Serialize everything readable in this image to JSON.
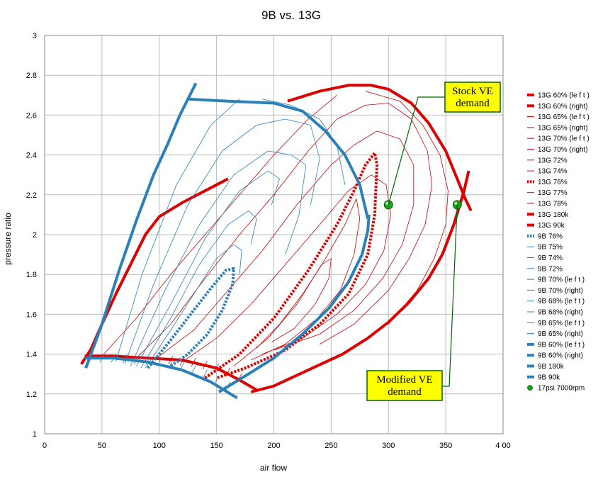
{
  "chart_data": {
    "type": "line",
    "title": "9B vs. 13G",
    "xlabel": "air flow",
    "ylabel": "pressure ratio",
    "xlim": [
      0,
      400
    ],
    "ylim": [
      1,
      3
    ],
    "x_ticks": [
      "0",
      "50",
      "100",
      "150",
      "200",
      "250",
      "300",
      "350",
      "4 00"
    ],
    "y_ticks": [
      "1",
      "1.2",
      "1.4",
      "1.6",
      "1.8",
      "2",
      "2.2",
      "2.4",
      "2.6",
      "2.8",
      "3"
    ],
    "grid": true,
    "legend_position": "right",
    "colors": {
      "red": "#dd0000",
      "blue": "#2a80b9",
      "green": "#1aa01a",
      "callout_fill": "#ffff00",
      "callout_border": "#006600",
      "grid": "#bbbbbb"
    },
    "series": [
      {
        "name": "13G 60% (le f t )",
        "color": "#dd0000",
        "style": "thick",
        "points": [
          [
            32,
            1.35
          ],
          [
            40,
            1.42
          ],
          [
            50,
            1.55
          ],
          [
            62,
            1.7
          ],
          [
            75,
            1.85
          ],
          [
            88,
            2.0
          ],
          [
            100,
            2.09
          ],
          [
            120,
            2.16
          ],
          [
            140,
            2.22
          ],
          [
            160,
            2.28
          ]
        ]
      },
      {
        "name": "13G 60% (right)",
        "color": "#dd0000",
        "style": "thick",
        "points": [
          [
            212,
            2.67
          ],
          [
            240,
            2.72
          ],
          [
            265,
            2.75
          ],
          [
            285,
            2.75
          ],
          [
            300,
            2.73
          ],
          [
            320,
            2.66
          ],
          [
            335,
            2.56
          ],
          [
            350,
            2.42
          ],
          [
            360,
            2.28
          ],
          [
            367,
            2.18
          ],
          [
            372,
            2.12
          ]
        ]
      },
      {
        "name": "13G 65% (le f t )",
        "color": "#cc0000",
        "style": "thin",
        "points": [
          [
            50,
            1.39
          ],
          [
            80,
            1.58
          ],
          [
            110,
            1.8
          ],
          [
            140,
            2.0
          ],
          [
            170,
            2.2
          ],
          [
            200,
            2.4
          ],
          [
            230,
            2.58
          ],
          [
            255,
            2.7
          ]
        ]
      },
      {
        "name": "13G 65% (right)",
        "color": "#cc0000",
        "style": "thin",
        "points": [
          [
            280,
            2.72
          ],
          [
            310,
            2.67
          ],
          [
            330,
            2.55
          ],
          [
            345,
            2.4
          ],
          [
            352,
            2.22
          ],
          [
            350,
            2.05
          ],
          [
            340,
            1.88
          ],
          [
            325,
            1.72
          ],
          [
            300,
            1.55
          ]
        ]
      },
      {
        "name": "13G 70% (le f t )",
        "color": "#cc0000",
        "style": "thin",
        "points": [
          [
            80,
            1.38
          ],
          [
            110,
            1.55
          ],
          [
            140,
            1.78
          ],
          [
            170,
            2.0
          ],
          [
            200,
            2.2
          ],
          [
            230,
            2.42
          ],
          [
            255,
            2.58
          ]
        ]
      },
      {
        "name": "13G 70% (right)",
        "color": "#cc0000",
        "style": "thin",
        "points": [
          [
            255,
            2.58
          ],
          [
            280,
            2.65
          ],
          [
            300,
            2.66
          ],
          [
            320,
            2.58
          ],
          [
            334,
            2.42
          ],
          [
            338,
            2.25
          ],
          [
            332,
            2.05
          ],
          [
            318,
            1.88
          ],
          [
            300,
            1.72
          ],
          [
            270,
            1.55
          ],
          [
            240,
            1.45
          ]
        ]
      },
      {
        "name": "13G 72%",
        "color": "#cc0000",
        "style": "thin",
        "points": [
          [
            100,
            1.39
          ],
          [
            130,
            1.52
          ],
          [
            160,
            1.72
          ],
          [
            190,
            1.92
          ],
          [
            220,
            2.15
          ],
          [
            250,
            2.35
          ],
          [
            270,
            2.45
          ],
          [
            290,
            2.52
          ],
          [
            310,
            2.48
          ],
          [
            322,
            2.35
          ],
          [
            322,
            2.15
          ],
          [
            312,
            1.95
          ],
          [
            295,
            1.78
          ],
          [
            270,
            1.62
          ],
          [
            240,
            1.5
          ],
          [
            200,
            1.42
          ]
        ]
      },
      {
        "name": "13G 74%",
        "color": "#cc0000",
        "style": "thin",
        "points": [
          [
            120,
            1.36
          ],
          [
            150,
            1.48
          ],
          [
            180,
            1.65
          ],
          [
            210,
            1.85
          ],
          [
            240,
            2.05
          ],
          [
            265,
            2.22
          ],
          [
            285,
            2.3
          ],
          [
            298,
            2.25
          ],
          [
            302,
            2.1
          ],
          [
            296,
            1.92
          ],
          [
            280,
            1.75
          ],
          [
            255,
            1.6
          ],
          [
            225,
            1.48
          ],
          [
            190,
            1.4
          ]
        ]
      },
      {
        "name": "13G 76%",
        "color": "#dd0000",
        "style": "dotted",
        "points": [
          [
            140,
            1.28
          ],
          [
            170,
            1.4
          ],
          [
            200,
            1.58
          ],
          [
            230,
            1.82
          ],
          [
            255,
            2.05
          ],
          [
            270,
            2.22
          ],
          [
            280,
            2.35
          ],
          [
            288,
            2.41
          ],
          [
            290,
            2.35
          ],
          [
            288,
            2.1
          ],
          [
            282,
            1.9
          ],
          [
            265,
            1.7
          ],
          [
            240,
            1.55
          ],
          [
            210,
            1.42
          ],
          [
            175,
            1.33
          ],
          [
            150,
            1.28
          ]
        ]
      },
      {
        "name": "13G 77%",
        "color": "#cc0000",
        "style": "thin",
        "points": [
          [
            165,
            1.34
          ],
          [
            195,
            1.48
          ],
          [
            220,
            1.65
          ],
          [
            245,
            1.88
          ],
          [
            262,
            2.05
          ],
          [
            272,
            2.18
          ],
          [
            275,
            2.08
          ],
          [
            270,
            1.9
          ],
          [
            258,
            1.72
          ],
          [
            238,
            1.58
          ],
          [
            210,
            1.45
          ],
          [
            180,
            1.37
          ]
        ]
      },
      {
        "name": "13G 78%",
        "color": "#cc0000",
        "style": "thin",
        "points": [
          [
            185,
            1.43
          ],
          [
            205,
            1.55
          ],
          [
            225,
            1.7
          ],
          [
            242,
            1.85
          ],
          [
            250,
            1.88
          ],
          [
            248,
            1.78
          ],
          [
            236,
            1.65
          ],
          [
            218,
            1.53
          ],
          [
            198,
            1.46
          ]
        ]
      },
      {
        "name": "13G 180k",
        "color": "#dd0000",
        "style": "thick",
        "points": [
          [
            35,
            1.39
          ],
          [
            60,
            1.39
          ],
          [
            90,
            1.38
          ],
          [
            120,
            1.37
          ],
          [
            150,
            1.33
          ],
          [
            170,
            1.27
          ],
          [
            185,
            1.22
          ]
        ]
      },
      {
        "name": "13G 90k",
        "color": "#dd0000",
        "style": "thick",
        "points": [
          [
            180,
            1.21
          ],
          [
            200,
            1.24
          ],
          [
            230,
            1.32
          ],
          [
            260,
            1.4
          ],
          [
            282,
            1.48
          ],
          [
            300,
            1.56
          ],
          [
            318,
            1.66
          ],
          [
            335,
            1.78
          ],
          [
            347,
            1.9
          ],
          [
            357,
            2.05
          ],
          [
            366,
            2.22
          ],
          [
            370,
            2.32
          ]
        ]
      },
      {
        "name": "9B 76%",
        "color": "#2a80b9",
        "style": "dotted",
        "points": [
          [
            90,
            1.33
          ],
          [
            110,
            1.47
          ],
          [
            130,
            1.62
          ],
          [
            145,
            1.73
          ],
          [
            158,
            1.82
          ],
          [
            165,
            1.83
          ],
          [
            164,
            1.75
          ],
          [
            155,
            1.62
          ],
          [
            142,
            1.5
          ],
          [
            125,
            1.4
          ],
          [
            110,
            1.34
          ]
        ]
      },
      {
        "name": "9B 75%",
        "color": "#2a80b9",
        "style": "thin",
        "points": [
          [
            88,
            1.33
          ],
          [
            110,
            1.52
          ],
          [
            130,
            1.7
          ],
          [
            150,
            1.88
          ],
          [
            165,
            1.95
          ],
          [
            172,
            1.92
          ],
          [
            170,
            1.8
          ]
        ]
      },
      {
        "name": "9B 74%",
        "color": "#2a80b9",
        "style": "thin",
        "points": [
          [
            84,
            1.33
          ],
          [
            110,
            1.58
          ],
          [
            135,
            1.85
          ],
          [
            160,
            2.05
          ],
          [
            178,
            2.12
          ],
          [
            185,
            2.08
          ],
          [
            180,
            1.95
          ]
        ]
      },
      {
        "name": "9B 72%",
        "color": "#2a80b9",
        "style": "thin",
        "points": [
          [
            80,
            1.34
          ],
          [
            110,
            1.65
          ],
          [
            140,
            1.98
          ],
          [
            170,
            2.22
          ],
          [
            195,
            2.32
          ],
          [
            205,
            2.28
          ],
          [
            198,
            2.15
          ]
        ]
      },
      {
        "name": "9B 70% (le f t )",
        "color": "#2a80b9",
        "style": "thin",
        "points": [
          [
            75,
            1.34
          ],
          [
            105,
            1.72
          ],
          [
            135,
            2.05
          ],
          [
            165,
            2.3
          ],
          [
            195,
            2.42
          ]
        ]
      },
      {
        "name": "9B 70% (right)",
        "color": "#2a80b9",
        "style": "thin",
        "points": [
          [
            195,
            2.42
          ],
          [
            215,
            2.4
          ],
          [
            228,
            2.35
          ],
          [
            222,
            2.1
          ],
          [
            210,
            1.9
          ]
        ]
      },
      {
        "name": "9B 68% (le f t )",
        "color": "#2a80b9",
        "style": "thin",
        "points": [
          [
            70,
            1.35
          ],
          [
            95,
            1.75
          ],
          [
            125,
            2.15
          ],
          [
            155,
            2.42
          ],
          [
            185,
            2.55
          ]
        ]
      },
      {
        "name": "9B 68% (right)",
        "color": "#2a80b9",
        "style": "thin",
        "points": [
          [
            185,
            2.55
          ],
          [
            210,
            2.58
          ],
          [
            232,
            2.55
          ],
          [
            240,
            2.38
          ],
          [
            232,
            2.15
          ]
        ]
      },
      {
        "name": "9B 65% (le f t )",
        "color": "#2a80b9",
        "style": "thin",
        "points": [
          [
            62,
            1.36
          ],
          [
            85,
            1.8
          ],
          [
            115,
            2.25
          ],
          [
            145,
            2.55
          ],
          [
            170,
            2.68
          ]
        ]
      },
      {
        "name": "9B 65% (right)",
        "color": "#2a80b9",
        "style": "thin",
        "points": [
          [
            190,
            2.68
          ],
          [
            215,
            2.65
          ],
          [
            240,
            2.58
          ],
          [
            255,
            2.45
          ],
          [
            262,
            2.25
          ]
        ]
      },
      {
        "name": "9B 60% (le f t )",
        "color": "#2a80b9",
        "style": "thick",
        "points": [
          [
            36,
            1.33
          ],
          [
            50,
            1.55
          ],
          [
            65,
            1.82
          ],
          [
            80,
            2.07
          ],
          [
            95,
            2.3
          ],
          [
            107,
            2.45
          ],
          [
            118,
            2.6
          ],
          [
            132,
            2.76
          ]
        ]
      },
      {
        "name": "9B 60% (right)",
        "color": "#2a80b9",
        "style": "thick",
        "points": [
          [
            126,
            2.68
          ],
          [
            160,
            2.67
          ],
          [
            200,
            2.66
          ],
          [
            225,
            2.62
          ],
          [
            245,
            2.52
          ],
          [
            262,
            2.4
          ],
          [
            275,
            2.25
          ],
          [
            282,
            2.08
          ]
        ]
      },
      {
        "name": "9B 180k",
        "color": "#2a80b9",
        "style": "thick",
        "points": [
          [
            35,
            1.38
          ],
          [
            60,
            1.38
          ],
          [
            90,
            1.36
          ],
          [
            120,
            1.32
          ],
          [
            145,
            1.26
          ],
          [
            168,
            1.18
          ]
        ]
      },
      {
        "name": "9B 90k",
        "color": "#2a80b9",
        "style": "thick",
        "points": [
          [
            152,
            1.21
          ],
          [
            175,
            1.29
          ],
          [
            200,
            1.38
          ],
          [
            225,
            1.5
          ],
          [
            248,
            1.63
          ],
          [
            265,
            1.76
          ],
          [
            277,
            1.9
          ],
          [
            282,
            2.02
          ],
          [
            283,
            2.1
          ]
        ]
      },
      {
        "name": "17psi 7000rpm",
        "color": "#1aa01a",
        "style": "marker",
        "points": [
          [
            300,
            2.15
          ],
          [
            360,
            2.15
          ]
        ]
      }
    ],
    "speed_ticks": {
      "9B": [
        [
          50,
          1.38
        ],
        [
          60,
          1.38
        ],
        [
          70,
          1.375
        ],
        [
          80,
          1.37
        ],
        [
          90,
          1.365
        ],
        [
          100,
          1.36
        ],
        [
          110,
          1.35
        ],
        [
          120,
          1.34
        ],
        [
          130,
          1.32
        ],
        [
          140,
          1.3
        ],
        [
          150,
          1.27
        ],
        [
          160,
          1.24
        ]
      ],
      "13G": [
        [
          110,
          1.37
        ],
        [
          120,
          1.365
        ],
        [
          130,
          1.36
        ],
        [
          140,
          1.345
        ],
        [
          150,
          1.33
        ],
        [
          160,
          1.31
        ],
        [
          170,
          1.28
        ]
      ]
    },
    "annotations": [
      {
        "text_lines": [
          "Stock VE",
          "demand"
        ],
        "point": [
          300,
          2.15
        ]
      },
      {
        "text_lines": [
          "Modified VE",
          "demand"
        ],
        "point": [
          360,
          2.15
        ]
      }
    ]
  }
}
